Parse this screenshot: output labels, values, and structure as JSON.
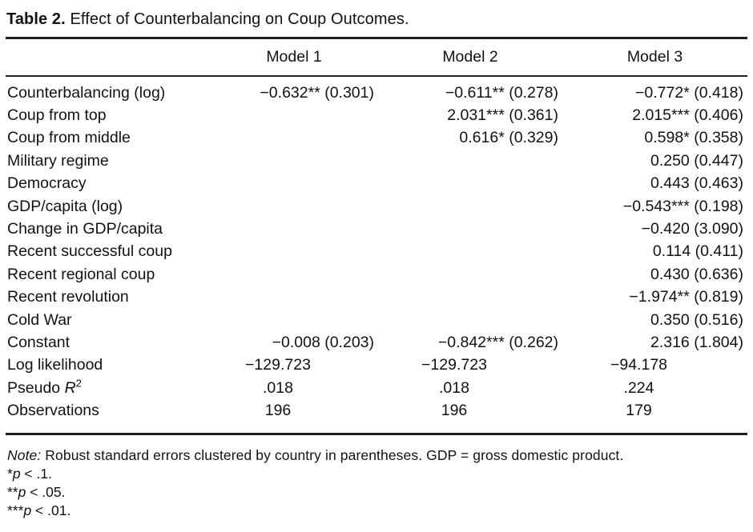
{
  "title": {
    "label": "Table 2.",
    "caption": " Effect of Counterbalancing on Coup Outcomes."
  },
  "table": {
    "column_headers": [
      "Model 1",
      "Model 2",
      "Model 3"
    ],
    "rows": [
      {
        "label": "Counterbalancing (log)",
        "cells": [
          "−0.632** (0.301)",
          "−0.611** (0.278)",
          "−0.772* (0.418)"
        ]
      },
      {
        "label": "Coup from top",
        "cells": [
          "",
          "2.031*** (0.361)",
          "2.015*** (0.406)"
        ]
      },
      {
        "label": "Coup from middle",
        "cells": [
          "",
          "0.616* (0.329)",
          "0.598* (0.358)"
        ]
      },
      {
        "label": "Military regime",
        "cells": [
          "",
          "",
          "0.250 (0.447)"
        ]
      },
      {
        "label": "Democracy",
        "cells": [
          "",
          "",
          "0.443 (0.463)"
        ]
      },
      {
        "label": "GDP/capita (log)",
        "cells": [
          "",
          "",
          "−0.543*** (0.198)"
        ]
      },
      {
        "label": "Change in GDP/capita",
        "cells": [
          "",
          "",
          "−0.420 (3.090)"
        ]
      },
      {
        "label": "Recent successful coup",
        "cells": [
          "",
          "",
          "0.114 (0.411)"
        ]
      },
      {
        "label": "Recent regional coup",
        "cells": [
          "",
          "",
          "0.430 (0.636)"
        ]
      },
      {
        "label": "Recent revolution",
        "cells": [
          "",
          "",
          "−1.974** (0.819)"
        ]
      },
      {
        "label": "Cold War",
        "cells": [
          "",
          "",
          "0.350 (0.516)"
        ]
      },
      {
        "label": "Constant",
        "cells": [
          "−0.008 (0.203)",
          "−0.842*** (0.262)",
          "2.316 (1.804)"
        ]
      },
      {
        "label": "Log likelihood",
        "stat": true,
        "cells": [
          "−129.723",
          "−129.723",
          "−94.178"
        ]
      },
      {
        "label": "Pseudo R2",
        "label_parts": {
          "prefix": "Pseudo ",
          "italic": "R",
          "sup": "2"
        },
        "stat": true,
        "cells": [
          ".018",
          ".018",
          ".224"
        ]
      },
      {
        "label": "Observations",
        "stat": true,
        "cells": [
          "196",
          "196",
          "179"
        ]
      }
    ]
  },
  "notes": {
    "note_label": "Note:",
    "note_text": " Robust standard errors clustered by country in parentheses. GDP = gross domestic product.",
    "significance": [
      {
        "stars": "*",
        "var": "p",
        "condition": " < .1."
      },
      {
        "stars": "**",
        "var": "p",
        "condition": " < .05."
      },
      {
        "stars": "***",
        "var": "p",
        "condition": " < .01."
      }
    ]
  }
}
